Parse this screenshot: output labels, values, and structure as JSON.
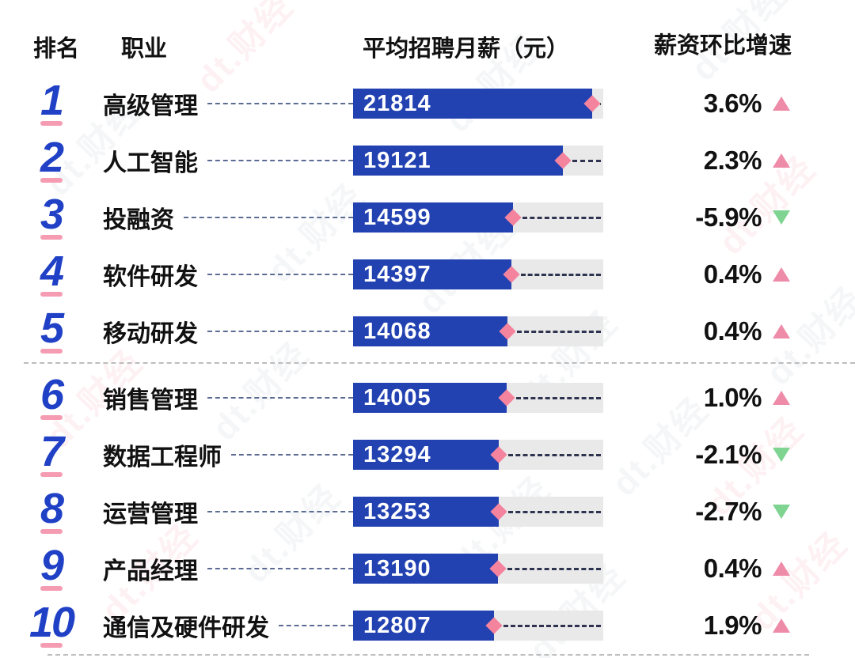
{
  "watermark": "dt.财经",
  "header": {
    "rank": "排名",
    "occupation": "职业",
    "salary": "平均招聘月薪（元）",
    "growth": "薪资环比增速"
  },
  "colors": {
    "bar": "#2342b2",
    "track": "#e9e9e9",
    "rank": "#2041c6",
    "rank_underline": "#f59cb2",
    "diamond": "#f4839e",
    "up": "#ee8ba8",
    "down": "#7fd492",
    "dash_connector": "#5c6c94",
    "dash_track": "#2e3450",
    "separator": "#bdbdbd",
    "text": "#111111",
    "value_text": "#ffffff"
  },
  "chart_data": {
    "type": "bar",
    "orientation": "horizontal",
    "bar_axis_max": 22800,
    "columns": [
      "排名",
      "职业",
      "平均招聘月薪（元）",
      "薪资环比增速"
    ],
    "rows": [
      {
        "rank": 1,
        "occupation": "高级管理",
        "salary": 21814,
        "growth": "3.6%",
        "direction": "up"
      },
      {
        "rank": 2,
        "occupation": "人工智能",
        "salary": 19121,
        "growth": "2.3%",
        "direction": "up"
      },
      {
        "rank": 3,
        "occupation": "投融资",
        "salary": 14599,
        "growth": "-5.9%",
        "direction": "down"
      },
      {
        "rank": 4,
        "occupation": "软件研发",
        "salary": 14397,
        "growth": "0.4%",
        "direction": "up"
      },
      {
        "rank": 5,
        "occupation": "移动研发",
        "salary": 14068,
        "growth": "0.4%",
        "direction": "up"
      },
      {
        "rank": 6,
        "occupation": "销售管理",
        "salary": 14005,
        "growth": "1.0%",
        "direction": "up"
      },
      {
        "rank": 7,
        "occupation": "数据工程师",
        "salary": 13294,
        "growth": "-2.1%",
        "direction": "down"
      },
      {
        "rank": 8,
        "occupation": "运营管理",
        "salary": 13253,
        "growth": "-2.7%",
        "direction": "down"
      },
      {
        "rank": 9,
        "occupation": "产品经理",
        "salary": 13190,
        "growth": "0.4%",
        "direction": "up"
      },
      {
        "rank": 10,
        "occupation": "通信及硬件研发",
        "salary": 12807,
        "growth": "1.9%",
        "direction": "up"
      }
    ]
  }
}
